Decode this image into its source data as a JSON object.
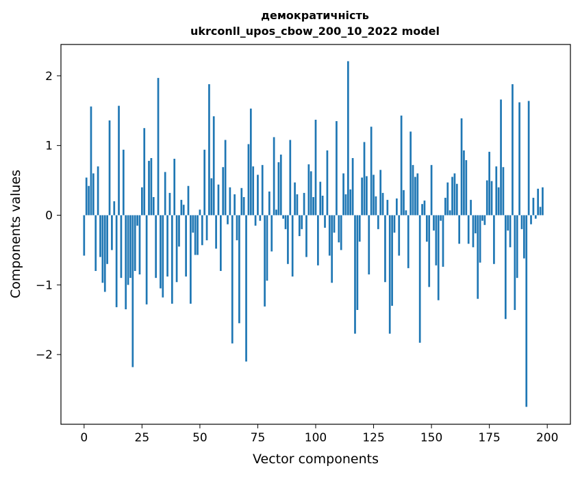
{
  "chart_data": {
    "type": "bar",
    "title": "демократичність",
    "subtitle": "ukrconll_upos_cbow_200_10_2022 model",
    "xlabel": "Vector components",
    "ylabel": "Components values",
    "xlim": [
      -10,
      210
    ],
    "ylim": [
      -3.0,
      2.45
    ],
    "xticks": [
      0,
      25,
      50,
      75,
      100,
      125,
      150,
      175,
      200
    ],
    "xtick_labels": [
      "0",
      "25",
      "50",
      "75",
      "100",
      "125",
      "150",
      "175",
      "200"
    ],
    "yticks": [
      -2,
      -1,
      0,
      1,
      2
    ],
    "ytick_labels": [
      "−2",
      "−1",
      "0",
      "1",
      "2"
    ],
    "bar_color": "#1f77b4",
    "grid": false,
    "values": [
      -0.58,
      0.54,
      0.42,
      1.56,
      0.6,
      -0.8,
      0.7,
      -0.6,
      -0.97,
      -1.1,
      -0.7,
      1.36,
      -0.5,
      0.2,
      -1.32,
      1.57,
      -0.9,
      0.94,
      -1.35,
      -1.0,
      -0.9,
      -2.18,
      -0.8,
      -0.15,
      -0.85,
      0.4,
      1.25,
      -1.28,
      0.78,
      0.82,
      0.26,
      -0.9,
      1.97,
      -1.05,
      -1.18,
      0.62,
      -0.88,
      0.32,
      -1.27,
      0.81,
      -0.96,
      -0.45,
      0.22,
      0.15,
      -0.88,
      0.42,
      -1.27,
      -0.25,
      -0.57,
      -0.57,
      0.08,
      -0.43,
      0.94,
      -0.36,
      1.88,
      0.53,
      1.42,
      -0.48,
      0.44,
      -0.8,
      0.69,
      1.08,
      -0.13,
      0.4,
      -1.84,
      0.3,
      -0.36,
      -1.55,
      0.39,
      0.26,
      -2.1,
      1.02,
      1.53,
      0.7,
      -0.15,
      0.58,
      -0.08,
      0.72,
      -1.31,
      -0.94,
      0.34,
      -0.52,
      1.12,
      0.08,
      0.76,
      0.87,
      -0.05,
      -0.2,
      -0.7,
      1.08,
      -0.88,
      0.47,
      0.3,
      -0.3,
      -0.2,
      0.32,
      -0.6,
      0.73,
      0.63,
      0.26,
      1.37,
      -0.72,
      0.48,
      0.28,
      -0.18,
      0.93,
      -0.58,
      -0.97,
      -0.25,
      1.35,
      -0.39,
      -0.5,
      0.6,
      0.3,
      2.21,
      0.37,
      0.82,
      -1.7,
      -1.36,
      -0.38,
      0.54,
      1.05,
      0.56,
      -0.85,
      1.27,
      0.58,
      0.27,
      -0.2,
      0.65,
      0.32,
      -0.96,
      0.22,
      -1.7,
      -1.3,
      -0.25,
      0.24,
      -0.58,
      1.43,
      0.36,
      0.07,
      -0.76,
      1.2,
      0.72,
      0.55,
      0.6,
      -1.83,
      0.16,
      0.21,
      -0.38,
      -1.03,
      0.72,
      -0.22,
      -0.72,
      -1.22,
      -0.08,
      -0.74,
      0.25,
      0.47,
      0.07,
      0.55,
      0.6,
      0.45,
      -0.41,
      1.39,
      0.93,
      0.79,
      -0.41,
      0.22,
      -0.46,
      -0.26,
      -1.2,
      -0.68,
      -0.08,
      -0.14,
      0.5,
      0.91,
      0.49,
      -0.7,
      0.7,
      0.4,
      1.66,
      0.69,
      -1.49,
      -0.22,
      -0.46,
      1.88,
      -1.36,
      -0.9,
      1.62,
      -0.2,
      -0.62,
      -2.75,
      1.64,
      -0.13,
      0.25,
      -0.05,
      0.38,
      0.12,
      0.4
    ]
  }
}
